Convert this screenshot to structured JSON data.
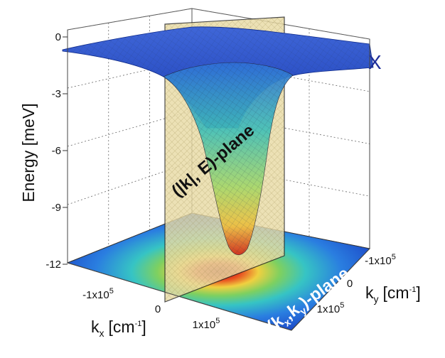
{
  "chart_data": {
    "type": "surface3d",
    "title": "",
    "zlabel": "Energy [meV]",
    "xlabel": "k",
    "xlabel_sub": "x",
    "xlabel_unit": "[cm",
    "xlabel_unit_sup": "-1",
    "xlabel_unit_end": "]",
    "ylabel": "k",
    "ylabel_sub": "y",
    "ylabel_unit": "[cm",
    "ylabel_unit_sup": "-1",
    "ylabel_unit_end": "]",
    "zlim": [
      -12,
      0
    ],
    "z_ticks": [
      "0",
      "-3",
      "-6",
      "-9",
      "-12"
    ],
    "z_tick_values": [
      0,
      -3,
      -6,
      -9,
      -12
    ],
    "x_ticks": [
      {
        "value": -100000,
        "base": "-1x10",
        "exp": "5"
      },
      {
        "value": 0,
        "base": "0",
        "exp": ""
      },
      {
        "value": 100000,
        "base": "1x10",
        "exp": "5"
      }
    ],
    "y_ticks": [
      {
        "value": -100000,
        "base": "-1x10",
        "exp": "5"
      },
      {
        "value": 0,
        "base": "0",
        "exp": ""
      },
      {
        "value": 100000,
        "base": "1x10",
        "exp": "5"
      }
    ],
    "surface": {
      "description_value_minimum_meV": -12,
      "asymptote_meV": -0.5,
      "center_k": [
        0,
        0
      ]
    },
    "annotations": {
      "vertical_plane": "(|k|, E)-plane",
      "bottom_plane_prefix": "(k",
      "bottom_plane_sub1": "x",
      "bottom_plane_mid": ",k",
      "bottom_plane_sub2": "y",
      "bottom_plane_suffix": ")-plane",
      "corner_mark": "X"
    },
    "grid": true,
    "colors": {
      "surface_top": "#1f3fbf",
      "surface_mid": "#3cc4c4",
      "surface_low": "#e8d040",
      "surface_min": "#c81e1e",
      "plane_fill": "#e8d8a0",
      "plane_edge": "#333333"
    }
  }
}
